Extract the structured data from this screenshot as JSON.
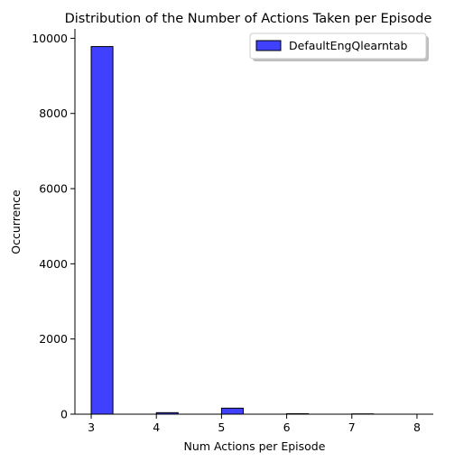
{
  "chart_data": {
    "type": "bar",
    "title": "Distribution of the Number of Actions Taken per Episode",
    "xlabel": "Num Actions per Episode",
    "ylabel": "Occurrence",
    "xlim": [
      2.75,
      8.25
    ],
    "ylim": [
      0,
      10250
    ],
    "xticks": [
      3,
      4,
      5,
      6,
      7,
      8
    ],
    "yticks": [
      0,
      2000,
      4000,
      6000,
      8000,
      10000
    ],
    "grid": false,
    "legend_position": "top-right",
    "colors": {
      "bar_fill": "#0000ff",
      "bar_fill_opacity": 0.75,
      "bar_edge": "#000000"
    },
    "series": [
      {
        "name": "DefaultEngQlearntab",
        "bins": [
          {
            "start": 3.0,
            "end": 3.3333,
            "value": 9780
          },
          {
            "start": 3.3333,
            "end": 3.6667,
            "value": 0
          },
          {
            "start": 3.6667,
            "end": 4.0,
            "value": 0
          },
          {
            "start": 4.0,
            "end": 4.3333,
            "value": 40
          },
          {
            "start": 4.3333,
            "end": 4.6667,
            "value": 0
          },
          {
            "start": 4.6667,
            "end": 5.0,
            "value": 0
          },
          {
            "start": 5.0,
            "end": 5.3333,
            "value": 160
          },
          {
            "start": 5.3333,
            "end": 5.6667,
            "value": 0
          },
          {
            "start": 5.6667,
            "end": 6.0,
            "value": 0
          },
          {
            "start": 6.0,
            "end": 6.3333,
            "value": 12
          },
          {
            "start": 6.3333,
            "end": 6.6667,
            "value": 0
          },
          {
            "start": 6.6667,
            "end": 7.0,
            "value": 0
          },
          {
            "start": 7.0,
            "end": 7.3333,
            "value": 8
          },
          {
            "start": 7.3333,
            "end": 7.6667,
            "value": 0
          },
          {
            "start": 7.6667,
            "end": 8.0,
            "value": 0
          }
        ]
      }
    ]
  }
}
